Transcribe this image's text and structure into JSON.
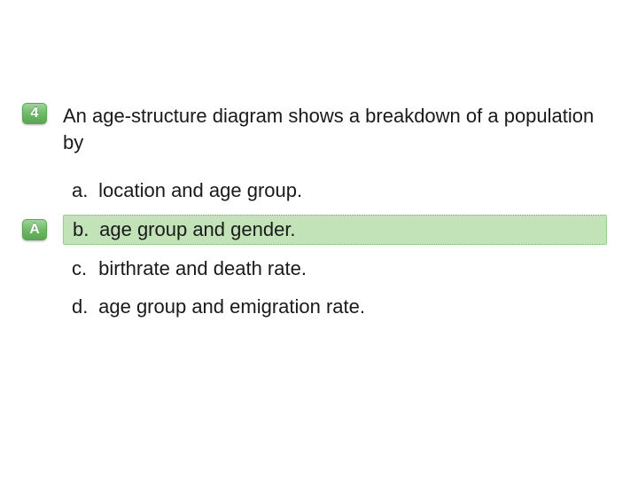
{
  "question": {
    "number_badge": "4",
    "text": "An age-structure diagram shows a breakdown of a population by",
    "badge_bg_gradient": [
      "#9fd49a",
      "#6fb968",
      "#5aa652"
    ],
    "badge_text_color": "#ffffff"
  },
  "answer_badge": {
    "label": "A",
    "badge_bg_gradient": [
      "#b8dcb0",
      "#8fc985",
      "#7ab671"
    ],
    "badge_text_color": "#ffffff"
  },
  "options": [
    {
      "letter": "a.",
      "text": "location and age group.",
      "highlighted": false
    },
    {
      "letter": "b.",
      "text": "age group and gender.",
      "highlighted": true
    },
    {
      "letter": "c.",
      "text": "birthrate and death rate.",
      "highlighted": false
    },
    {
      "letter": "d.",
      "text": "age group and emigration rate.",
      "highlighted": false
    }
  ],
  "colors": {
    "text": "#1a1a1a",
    "highlight_bg": "#c1e3b7",
    "highlight_border": "#6fb968",
    "background": "#ffffff"
  },
  "typography": {
    "font_family": "Arial",
    "question_fontsize": 22,
    "option_fontsize": 22,
    "badge_fontsize": 16
  }
}
